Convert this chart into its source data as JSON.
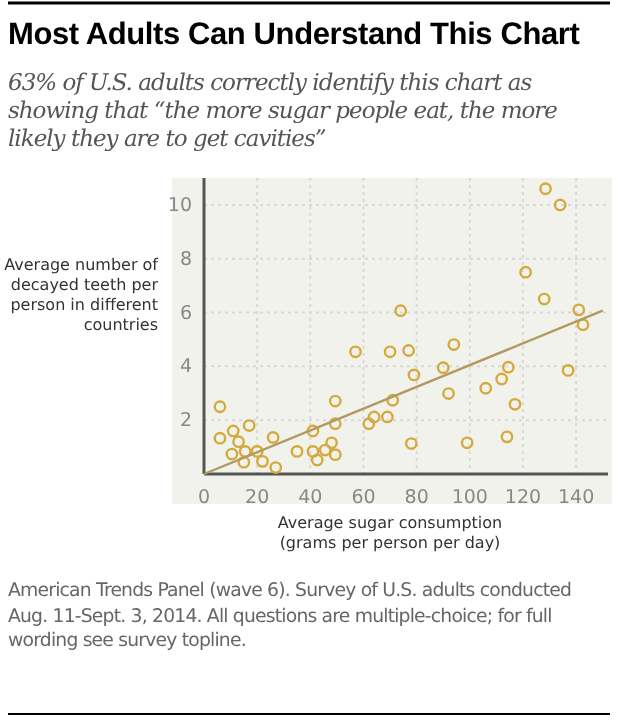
{
  "chart_data": {
    "type": "scatter",
    "title": "Most Adults Can Understand This Chart",
    "subtitle": "63% of U.S. adults correctly identify this chart as showing that “the more sugar people eat, the more likely they are to get cavities”",
    "xlabel": "Average sugar consumption (grams per person per day)",
    "ylabel": "Average number of decayed teeth per person in different countries",
    "annotations": [
      "American Trends Panel (wave 6). Survey of U.S. adults conducted Aug. 11-Sept. 3, 2014. All questions are multiple-choice; for full wording see survey topline."
    ],
    "xlim": [
      0,
      152
    ],
    "ylim": [
      0,
      11
    ],
    "xticks": [
      0,
      20,
      40,
      60,
      80,
      100,
      120,
      140
    ],
    "yticks": [
      2,
      4,
      6,
      8,
      10
    ],
    "grid": true,
    "series": [
      {
        "marker": "circle",
        "color": "#d4aa3c",
        "x": [
          6,
          6,
          11,
          17,
          13,
          10.5,
          15.5,
          20,
          15,
          22,
          26,
          27,
          35,
          41,
          41,
          42.6,
          45.6,
          48,
          49.4,
          49.4,
          49.4,
          57,
          62,
          64,
          69,
          71,
          70,
          74,
          77,
          78,
          79,
          90,
          92,
          94,
          99,
          106,
          112,
          114.5,
          114,
          117,
          121,
          128,
          128.5,
          134,
          137,
          141,
          142.6
        ],
        "values": [
          2.5,
          1.33,
          1.6,
          1.8,
          1.2,
          0.74,
          0.84,
          0.84,
          0.44,
          0.47,
          1.36,
          0.24,
          0.84,
          1.6,
          0.84,
          0.52,
          0.89,
          1.16,
          0.72,
          1.87,
          2.71,
          4.54,
          1.87,
          2.12,
          2.12,
          2.74,
          4.54,
          6.07,
          4.59,
          1.13,
          3.68,
          3.95,
          2.99,
          4.81,
          1.16,
          3.19,
          3.53,
          3.97,
          1.38,
          2.59,
          7.5,
          6.5,
          10.6,
          10,
          3.85,
          6.1,
          5.55
        ]
      },
      {
        "type": "line",
        "color": "#b09a62",
        "x": [
          0,
          150
        ],
        "values": [
          0,
          6.07
        ]
      }
    ]
  }
}
